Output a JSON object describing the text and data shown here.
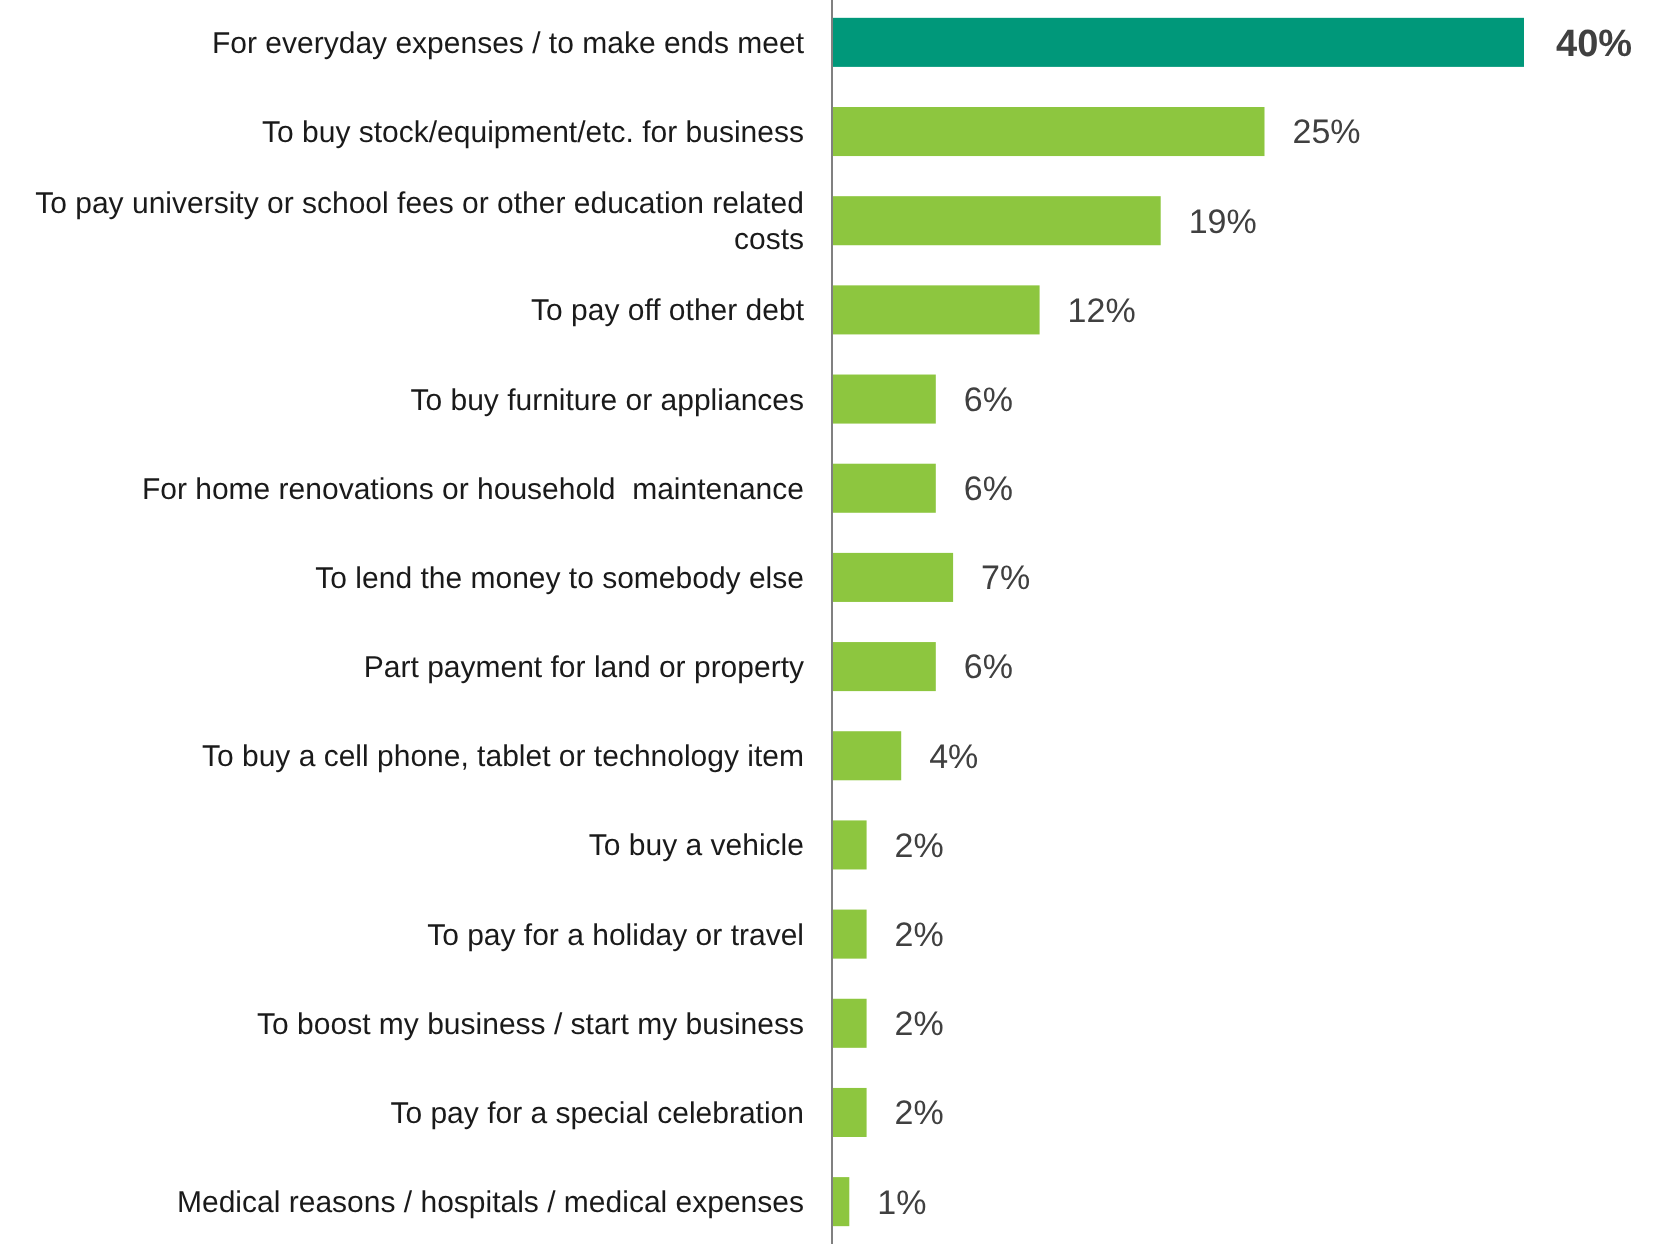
{
  "chart_data": {
    "type": "bar",
    "orientation": "horizontal",
    "categories": [
      "For everyday expenses / to make ends meet",
      "To buy stock/equipment/etc. for business",
      "To pay university or school fees or other education related costs",
      "To pay off other debt",
      "To buy furniture or appliances",
      "For home renovations or household  maintenance",
      "To lend the money to somebody else",
      "Part payment for land or property",
      "To buy a cell phone, tablet or technology item",
      "To buy a vehicle",
      "To pay for a holiday or travel",
      "To boost my business / start my business",
      "To pay for a special celebration",
      "Medical reasons / hospitals / medical expenses"
    ],
    "values": [
      40,
      25,
      19,
      12,
      6,
      6,
      7,
      6,
      4,
      2,
      2,
      2,
      2,
      1
    ],
    "colors": [
      "#00987a",
      "#8dc63f",
      "#8dc63f",
      "#8dc63f",
      "#8dc63f",
      "#8dc63f",
      "#8dc63f",
      "#8dc63f",
      "#8dc63f",
      "#8dc63f",
      "#8dc63f",
      "#8dc63f",
      "#8dc63f",
      "#8dc63f"
    ],
    "value_labels": [
      "40%",
      "25%",
      "19%",
      "12%",
      "6%",
      "6%",
      "7%",
      "6%",
      "4%",
      "2%",
      "2%",
      "2%",
      "2%",
      "1%"
    ],
    "tick_labels": "y"
  }
}
